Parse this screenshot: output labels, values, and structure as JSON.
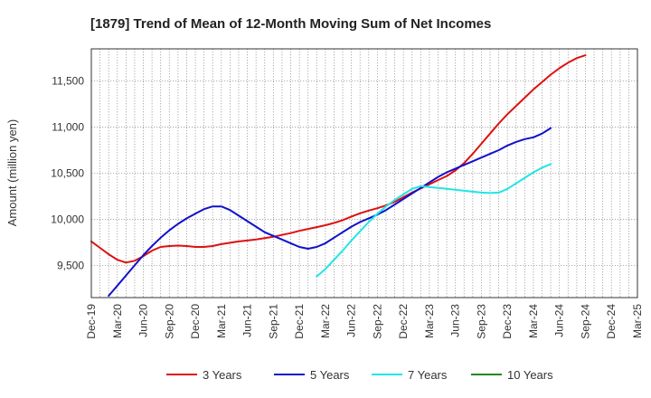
{
  "chart_data": {
    "type": "line",
    "title": "[1879]  Trend of Mean of 12-Month Moving Sum of Net Incomes",
    "xlabel": "",
    "ylabel": "Amount (million yen)",
    "ylim": [
      9150,
      11850
    ],
    "yticks": [
      9500,
      10000,
      10500,
      11000,
      11500
    ],
    "ytick_labels": [
      "9,500",
      "10,000",
      "10,500",
      "11,000",
      "11,500"
    ],
    "x_ticks": [
      "Dec-19",
      "Mar-20",
      "Jun-20",
      "Sep-20",
      "Dec-20",
      "Mar-21",
      "Jun-21",
      "Sep-21",
      "Dec-21",
      "Mar-22",
      "Jun-22",
      "Sep-22",
      "Dec-22",
      "Mar-23",
      "Jun-23",
      "Sep-23",
      "Dec-23",
      "Mar-24",
      "Jun-24",
      "Sep-24",
      "Dec-24",
      "Mar-25"
    ],
    "grid": true,
    "legend_position": "bottom",
    "series": [
      {
        "name": "3 Years",
        "color": "#dd1111",
        "start": "Dec-19",
        "values": [
          9760,
          9690,
          9620,
          9560,
          9530,
          9550,
          9600,
          9660,
          9700,
          9710,
          9715,
          9710,
          9700,
          9700,
          9710,
          9730,
          9745,
          9760,
          9770,
          9780,
          9795,
          9810,
          9830,
          9850,
          9875,
          9895,
          9915,
          9935,
          9960,
          9990,
          10030,
          10065,
          10095,
          10120,
          10150,
          10190,
          10240,
          10290,
          10335,
          10380,
          10425,
          10470,
          10530,
          10610,
          10710,
          10820,
          10930,
          11040,
          11140,
          11230,
          11320,
          11410,
          11490,
          11570,
          11640,
          11700,
          11750,
          11780
        ]
      },
      {
        "name": "5 Years",
        "color": "#1111cc",
        "start": "Feb-20",
        "values": [
          9170,
          9280,
          9390,
          9500,
          9610,
          9710,
          9800,
          9880,
          9950,
          10010,
          10060,
          10110,
          10140,
          10140,
          10100,
          10040,
          9980,
          9920,
          9860,
          9820,
          9780,
          9740,
          9700,
          9680,
          9700,
          9740,
          9800,
          9860,
          9920,
          9970,
          10010,
          10050,
          10100,
          10160,
          10220,
          10280,
          10340,
          10400,
          10460,
          10510,
          10550,
          10590,
          10630,
          10670,
          10710,
          10750,
          10800,
          10840,
          10870,
          10890,
          10930,
          10990
        ]
      },
      {
        "name": "7 Years",
        "color": "#22e5e5",
        "start": "Feb-22",
        "values": [
          9380,
          9460,
          9560,
          9660,
          9770,
          9870,
          9970,
          10060,
          10140,
          10210,
          10270,
          10330,
          10360,
          10350,
          10340,
          10330,
          10320,
          10310,
          10300,
          10290,
          10285,
          10290,
          10330,
          10390,
          10450,
          10510,
          10560,
          10600
        ]
      },
      {
        "name": "10 Years",
        "color": "#228822",
        "start": "Dec-24",
        "values": []
      }
    ]
  }
}
